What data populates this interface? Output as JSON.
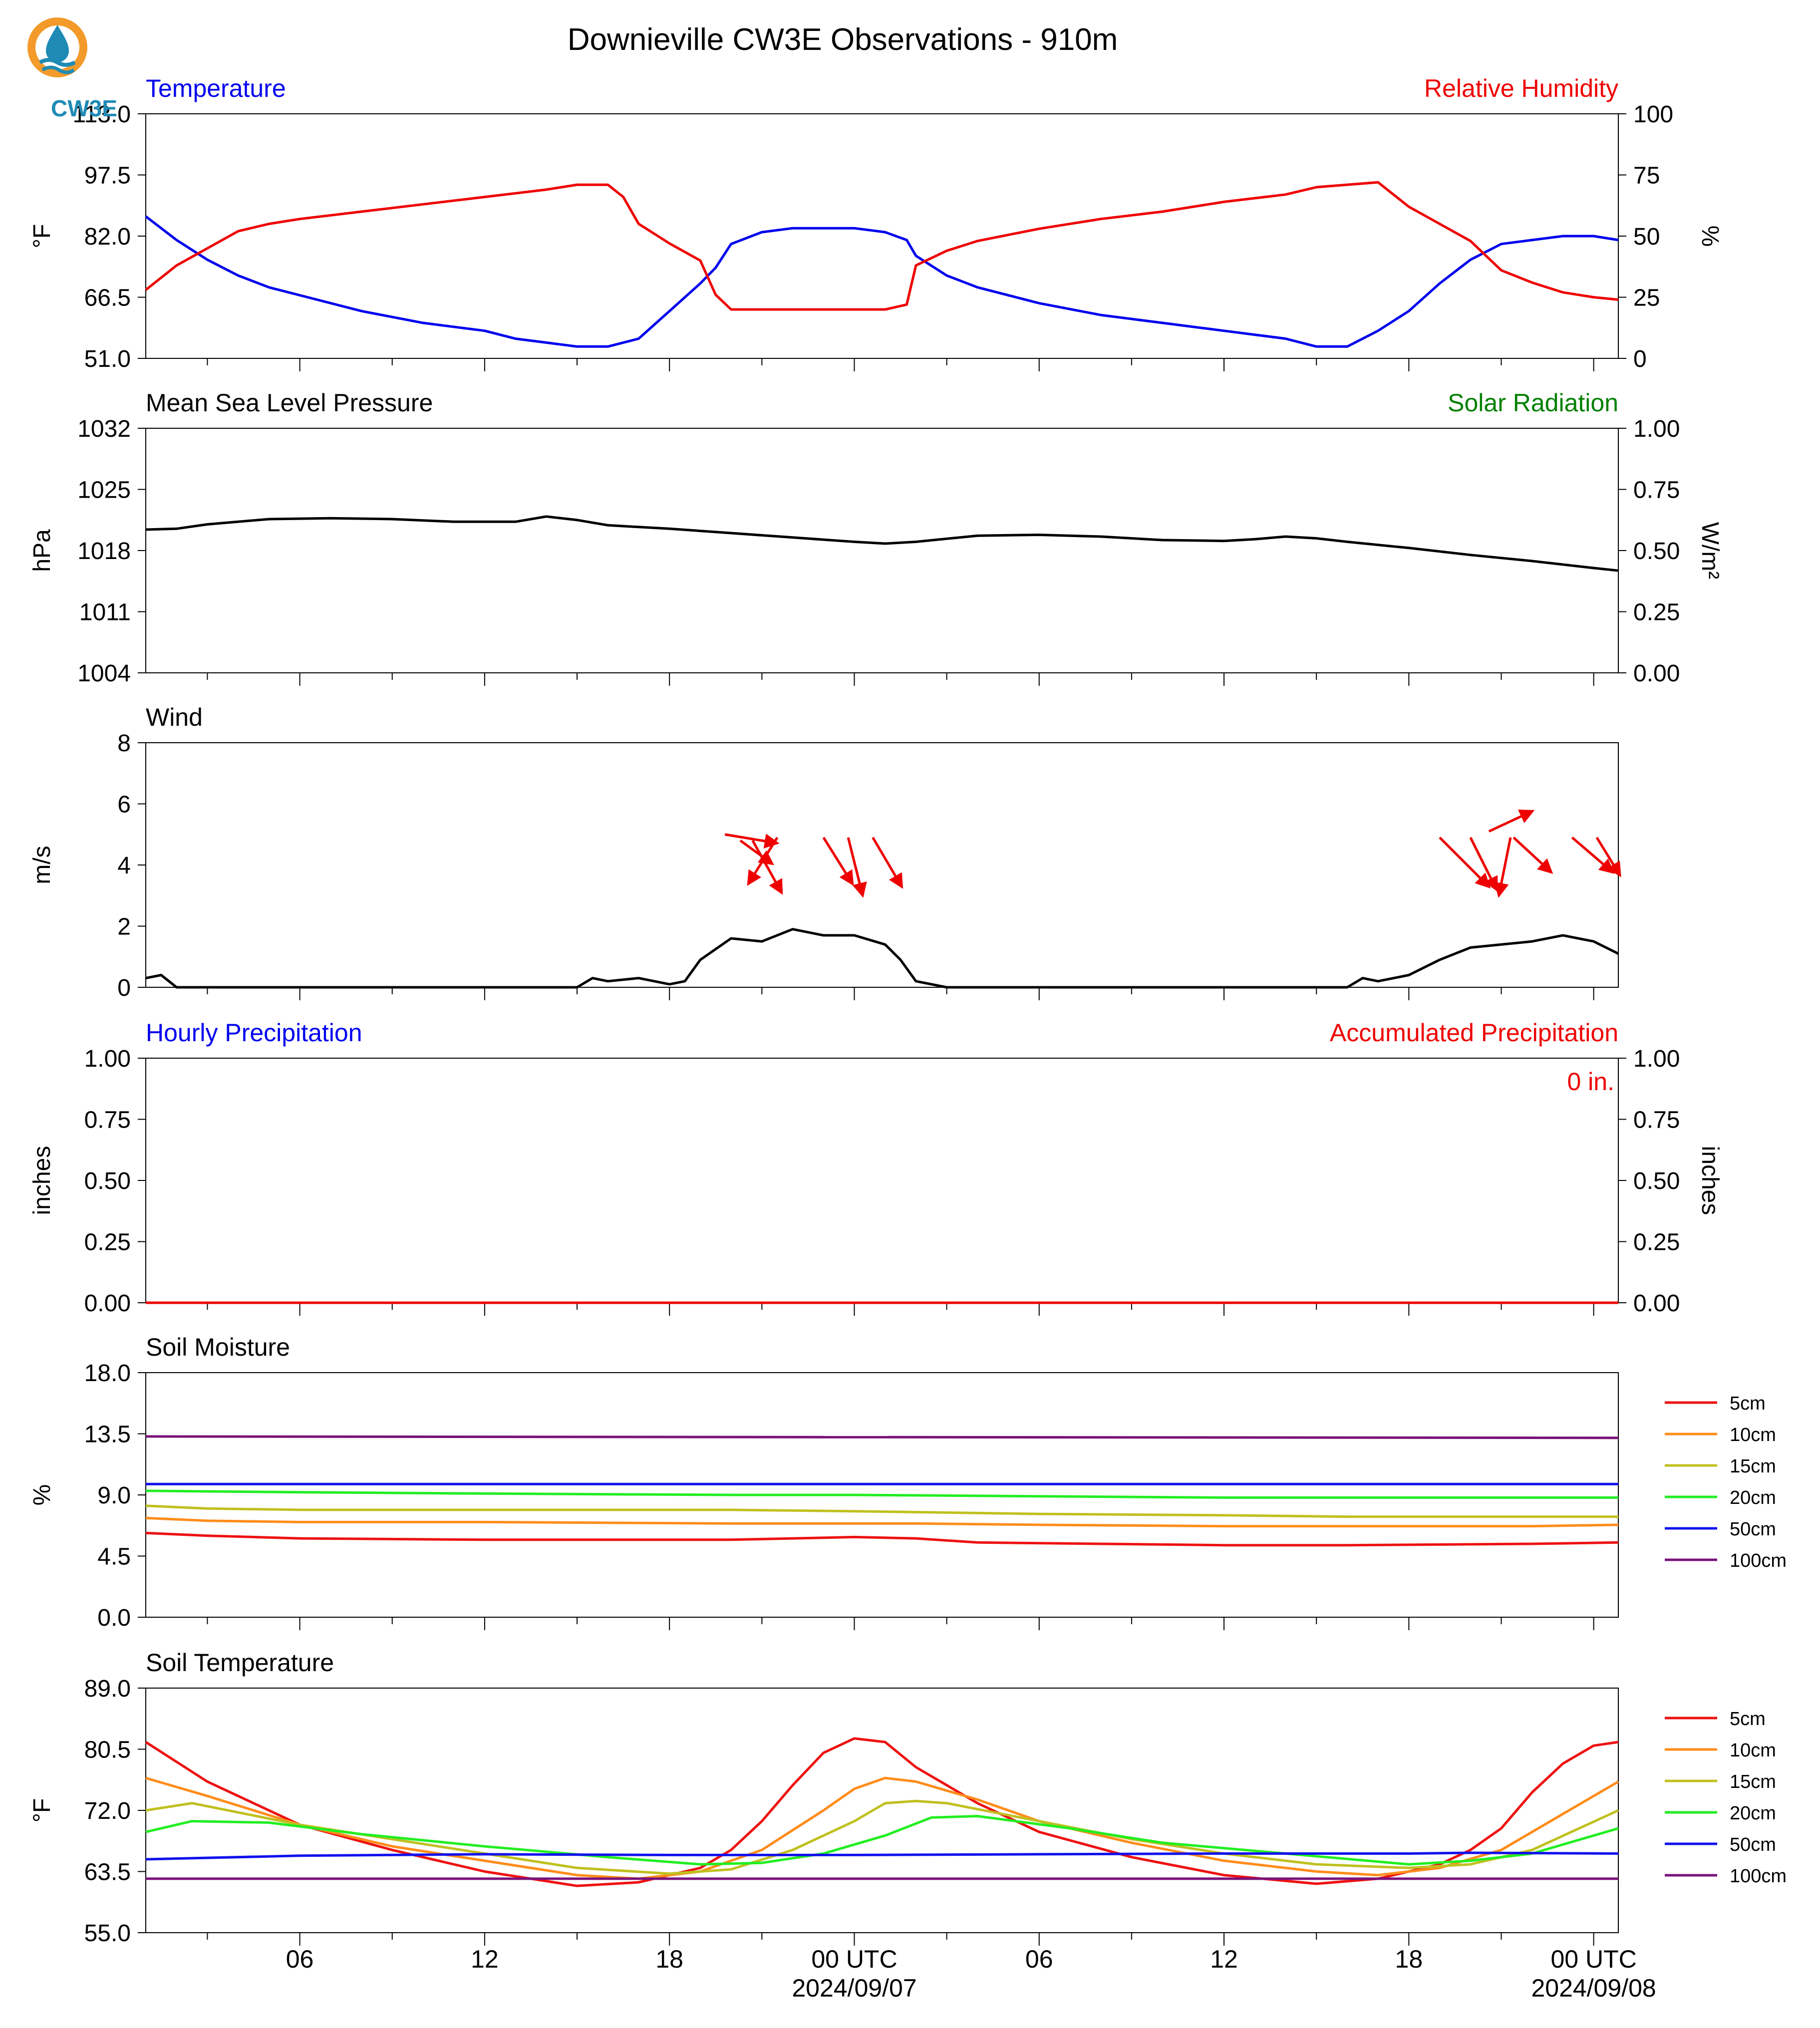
{
  "title": "Downieville CW3E Observations - 910m",
  "logo_text": "CW3E",
  "x_axis": {
    "tick_labels": [
      "06",
      "12",
      "18",
      "00 UTC",
      "06",
      "12",
      "18",
      "00 UTC"
    ],
    "date_labels": [
      "2024/09/07",
      "2024/09/08"
    ]
  },
  "legend_depths": [
    "5cm",
    "10cm",
    "15cm",
    "20cm",
    "50cm",
    "100cm"
  ],
  "colors": {
    "temperature": "#0000ee",
    "humidity": "#ee0000",
    "pressure": "#000000",
    "solar": "#008000",
    "wind": "#000000",
    "wind_arrow": "#ee0000",
    "hourly_precip": "#0000ee",
    "accum_precip": "#ee0000",
    "5cm": "#ee1111",
    "10cm": "#ff8c1a",
    "15cm": "#c0c020",
    "20cm": "#22ee22",
    "50cm": "#1111ee",
    "100cm": "#7a127a"
  },
  "chart_data": [
    {
      "type": "line",
      "title_left": "Temperature",
      "title_right": "Relative Humidity",
      "ylabel_left": "°F",
      "ylabel_right": "%",
      "ylim_left": [
        51.0,
        113.0
      ],
      "ylim_right": [
        0,
        100
      ],
      "yticks_left": [
        "113.0",
        "97.5",
        "82.0",
        "66.5",
        "51.0"
      ],
      "yticks_right": [
        "100",
        "75",
        "50",
        "25",
        "0"
      ],
      "series": [
        {
          "key": "temperature",
          "axis": "left",
          "x": [
            1,
            2,
            3,
            4,
            5,
            6,
            8,
            10,
            12,
            13,
            14,
            15,
            16,
            17,
            18,
            19,
            19.5,
            20,
            21,
            22,
            23,
            24,
            25,
            25.7,
            26,
            27,
            28,
            30,
            32,
            34,
            36,
            37,
            38,
            38.5,
            39,
            40,
            40.5,
            41,
            42,
            43,
            44,
            45,
            46,
            47,
            48,
            48.8
          ],
          "values": [
            87,
            81,
            76,
            72,
            69,
            67,
            63,
            60,
            58,
            56,
            55,
            54,
            54,
            56,
            63,
            70,
            74,
            80,
            83,
            84,
            84,
            84,
            83,
            81,
            77,
            72,
            69,
            65,
            62,
            60,
            58,
            57,
            56,
            55,
            54,
            54,
            56,
            58,
            63,
            70,
            76,
            80,
            81,
            82,
            82,
            81
          ]
        },
        {
          "key": "humidity",
          "axis": "right",
          "x": [
            1,
            2,
            3,
            4,
            5,
            6,
            8,
            10,
            12,
            14,
            15,
            16,
            16.5,
            17,
            18,
            19,
            19.5,
            20,
            21,
            22,
            23,
            24,
            25,
            25.7,
            26,
            27,
            28,
            30,
            32,
            34,
            36,
            38,
            39,
            40,
            41,
            42,
            43,
            44,
            45,
            46,
            47,
            48,
            48.8
          ],
          "values": [
            28,
            38,
            45,
            52,
            55,
            57,
            60,
            63,
            66,
            69,
            71,
            71,
            66,
            55,
            47,
            40,
            26,
            20,
            20,
            20,
            20,
            20,
            20,
            22,
            38,
            44,
            48,
            53,
            57,
            60,
            64,
            67,
            70,
            71,
            72,
            62,
            55,
            48,
            36,
            31,
            27,
            25,
            24
          ]
        }
      ]
    },
    {
      "type": "line",
      "title_left": "Mean Sea Level Pressure",
      "title_right": "Solar Radiation",
      "ylabel_left": "hPa",
      "ylabel_right": "W/m²",
      "ylim_left": [
        1004,
        1032
      ],
      "ylim_right": [
        0.0,
        1.0
      ],
      "yticks_left": [
        "1032",
        "1025",
        "1018",
        "1011",
        "1004"
      ],
      "yticks_right": [
        "1.00",
        "0.75",
        "0.50",
        "0.25",
        "0.00"
      ],
      "series": [
        {
          "key": "pressure",
          "axis": "left",
          "x": [
            1,
            2,
            3,
            5,
            7,
            9,
            11,
            13,
            14,
            15,
            16,
            18,
            20,
            22,
            24,
            25,
            26,
            28,
            30,
            32,
            34,
            36,
            37,
            38,
            39,
            40,
            42,
            44,
            46,
            48,
            48.8
          ],
          "values": [
            1020.4,
            1020.5,
            1021.0,
            1021.6,
            1021.7,
            1021.6,
            1021.3,
            1021.3,
            1021.9,
            1021.5,
            1020.9,
            1020.5,
            1020.0,
            1019.5,
            1019.0,
            1018.8,
            1019.0,
            1019.7,
            1019.8,
            1019.6,
            1019.2,
            1019.1,
            1019.3,
            1019.6,
            1019.4,
            1019.0,
            1018.3,
            1017.5,
            1016.8,
            1016.0,
            1015.7
          ]
        }
      ]
    },
    {
      "type": "line",
      "title_left": "Wind",
      "ylabel_left": "m/s",
      "ylim_left": [
        0,
        8
      ],
      "yticks_left": [
        "8",
        "6",
        "4",
        "2",
        "0"
      ],
      "series": [
        {
          "key": "wind",
          "axis": "left",
          "x": [
            1,
            1.5,
            2,
            15,
            15.5,
            16,
            17,
            18,
            18.5,
            19,
            20,
            21,
            22,
            23,
            24,
            25,
            25.5,
            26,
            27,
            40,
            40.5,
            41,
            42,
            43,
            44,
            45,
            46,
            47,
            48,
            48.8
          ],
          "values": [
            0.3,
            0.4,
            0.0,
            0.0,
            0.3,
            0.2,
            0.3,
            0.1,
            0.2,
            0.9,
            1.6,
            1.5,
            1.9,
            1.7,
            1.7,
            1.4,
            0.9,
            0.2,
            0.0,
            0.0,
            0.3,
            0.2,
            0.4,
            0.9,
            1.3,
            1.4,
            1.5,
            1.7,
            1.5,
            1.1
          ]
        }
      ],
      "arrows": [
        {
          "x": 19.8,
          "y": 5.0,
          "u": 1.8,
          "v": -0.3
        },
        {
          "x": 20.3,
          "y": 4.8,
          "u": 1.1,
          "v": -0.8
        },
        {
          "x": 20.7,
          "y": 4.8,
          "u": 1.0,
          "v": -1.8
        },
        {
          "x": 21.5,
          "y": 4.9,
          "u": -1.0,
          "v": -1.6
        },
        {
          "x": 23.0,
          "y": 4.9,
          "u": 1.0,
          "v": -1.6
        },
        {
          "x": 23.8,
          "y": 4.9,
          "u": 0.5,
          "v": -2.0
        },
        {
          "x": 24.6,
          "y": 4.9,
          "u": 1.0,
          "v": -1.7
        },
        {
          "x": 43.0,
          "y": 4.9,
          "u": 1.7,
          "v": -1.7
        },
        {
          "x": 44.0,
          "y": 4.9,
          "u": 0.9,
          "v": -1.8
        },
        {
          "x": 44.6,
          "y": 5.1,
          "u": 1.5,
          "v": 0.7
        },
        {
          "x": 45.3,
          "y": 4.9,
          "u": -0.4,
          "v": -2.0
        },
        {
          "x": 45.4,
          "y": 4.9,
          "u": 1.3,
          "v": -1.2
        },
        {
          "x": 47.3,
          "y": 4.9,
          "u": 1.4,
          "v": -1.2
        },
        {
          "x": 48.1,
          "y": 4.9,
          "u": 0.8,
          "v": -1.3
        }
      ]
    },
    {
      "type": "line",
      "title_left": "Hourly Precipitation",
      "title_right": "Accumulated Precipitation",
      "annotation": "0 in.",
      "ylabel_left": "inches",
      "ylabel_right": "inches",
      "ylim_left": [
        0.0,
        1.0
      ],
      "ylim_right": [
        0.0,
        1.0
      ],
      "yticks_left": [
        "1.00",
        "0.75",
        "0.50",
        "0.25",
        "0.00"
      ],
      "yticks_right": [
        "1.00",
        "0.75",
        "0.50",
        "0.25",
        "0.00"
      ],
      "series": [
        {
          "key": "accum_precip",
          "axis": "left",
          "x": [
            1,
            48.8
          ],
          "values": [
            0.0,
            0.0
          ]
        }
      ]
    },
    {
      "type": "line",
      "title_left": "Soil Moisture",
      "ylabel_left": "%",
      "ylim_left": [
        0.0,
        18.0
      ],
      "yticks_left": [
        "18.0",
        "13.5",
        "9.0",
        "4.5",
        "0.0"
      ],
      "legend": true,
      "series": [
        {
          "key": "5cm",
          "axis": "left",
          "x": [
            1,
            3,
            6,
            12,
            20,
            24,
            26,
            28,
            32,
            36,
            40,
            46,
            48.8
          ],
          "values": [
            6.2,
            6.0,
            5.8,
            5.7,
            5.7,
            5.9,
            5.8,
            5.5,
            5.4,
            5.3,
            5.3,
            5.4,
            5.5
          ]
        },
        {
          "key": "10cm",
          "axis": "left",
          "x": [
            1,
            3,
            6,
            12,
            20,
            24,
            26,
            30,
            36,
            40,
            46,
            48.8
          ],
          "values": [
            7.3,
            7.1,
            7.0,
            7.0,
            6.9,
            6.9,
            6.9,
            6.8,
            6.7,
            6.7,
            6.7,
            6.8
          ]
        },
        {
          "key": "15cm",
          "axis": "left",
          "x": [
            1,
            3,
            6,
            12,
            20,
            24,
            30,
            36,
            40,
            46,
            48.8
          ],
          "values": [
            8.2,
            8.0,
            7.9,
            7.9,
            7.9,
            7.8,
            7.6,
            7.5,
            7.4,
            7.4,
            7.4
          ]
        },
        {
          "key": "20cm",
          "axis": "left",
          "x": [
            1,
            6,
            12,
            20,
            24,
            30,
            36,
            40,
            46,
            48.8
          ],
          "values": [
            9.3,
            9.2,
            9.1,
            9.0,
            9.0,
            8.9,
            8.8,
            8.8,
            8.8,
            8.8
          ]
        },
        {
          "key": "50cm",
          "axis": "left",
          "x": [
            1,
            48.8
          ],
          "values": [
            9.8,
            9.8
          ]
        },
        {
          "key": "100cm",
          "axis": "left",
          "x": [
            1,
            48.8
          ],
          "values": [
            13.3,
            13.2
          ]
        }
      ]
    },
    {
      "type": "line",
      "title_left": "Soil Temperature",
      "ylabel_left": "°F",
      "ylim_left": [
        55.0,
        89.0
      ],
      "yticks_left": [
        "55.0",
        "63.5",
        "72.0",
        "80.5",
        "89.0"
      ],
      "legend": true,
      "series": [
        {
          "key": "5cm",
          "axis": "left",
          "x": [
            1,
            3,
            6,
            9,
            12,
            15,
            17,
            19,
            20,
            21,
            22,
            23,
            24,
            25,
            26,
            28,
            30,
            33,
            36,
            39,
            41,
            43,
            44,
            45,
            46,
            47,
            48,
            48.8
          ],
          "values": [
            81.5,
            76,
            70,
            66.5,
            63.5,
            61.5,
            62,
            64,
            66.5,
            70.5,
            75.5,
            80,
            82,
            81.5,
            78,
            73,
            69,
            65.5,
            63,
            61.8,
            62.5,
            64.5,
            66.5,
            69.5,
            74.5,
            78.5,
            81,
            81.5
          ]
        },
        {
          "key": "10cm",
          "axis": "left",
          "x": [
            1,
            3,
            6,
            9,
            12,
            15,
            17,
            19,
            21,
            23,
            24,
            25,
            26,
            28,
            30,
            33,
            36,
            39,
            41,
            43,
            45,
            47,
            48.8
          ],
          "values": [
            76.5,
            74,
            70,
            67,
            65,
            63,
            62.5,
            63.5,
            66.5,
            72,
            75,
            76.5,
            76,
            73.5,
            70.5,
            67.5,
            65,
            63.5,
            63,
            64,
            66.5,
            71.5,
            76
          ]
        },
        {
          "key": "15cm",
          "axis": "left",
          "x": [
            1,
            2.5,
            6,
            9,
            12,
            15,
            18,
            20,
            22,
            24,
            25,
            26,
            27,
            30,
            33,
            36,
            39,
            42,
            44,
            46,
            48.8
          ],
          "values": [
            72,
            73,
            70,
            68,
            66,
            64,
            63.2,
            63.8,
            66.5,
            70.5,
            73,
            73.3,
            73,
            70.5,
            68,
            66,
            64.5,
            64,
            64.5,
            66.5,
            72
          ]
        },
        {
          "key": "20cm",
          "axis": "left",
          "x": [
            1,
            2.5,
            5,
            8,
            12,
            16,
            19,
            21,
            23,
            25,
            26.5,
            28,
            31,
            34,
            38,
            42,
            44,
            46,
            48.8
          ],
          "values": [
            69,
            70.5,
            70.3,
            68.7,
            67,
            65.5,
            64.5,
            64.7,
            66,
            68.5,
            71,
            71.2,
            69.5,
            67.5,
            66,
            64.5,
            65,
            66,
            69.5
          ]
        },
        {
          "key": "50cm",
          "axis": "left",
          "x": [
            1,
            6,
            12,
            18,
            24,
            30,
            36,
            42,
            44,
            48.8
          ],
          "values": [
            65.2,
            65.7,
            65.9,
            65.8,
            65.8,
            65.9,
            66,
            66,
            66.1,
            66
          ]
        },
        {
          "key": "100cm",
          "axis": "left",
          "x": [
            1,
            48.8
          ],
          "values": [
            62.5,
            62.5
          ]
        }
      ]
    }
  ]
}
